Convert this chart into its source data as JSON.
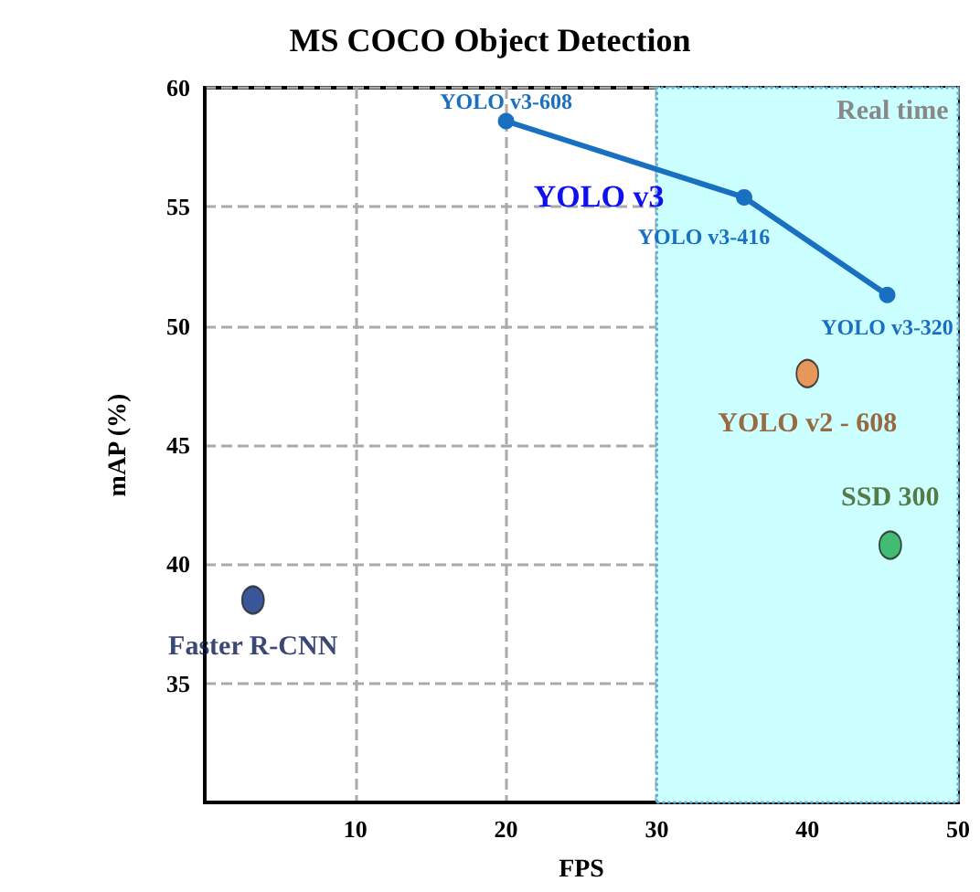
{
  "chart_data": {
    "type": "line",
    "title": "MS COCO Object Detection",
    "xlabel": "FPS",
    "ylabel": "mAP (%)",
    "xlim": [
      0,
      50
    ],
    "xticks": [
      10,
      20,
      30,
      40,
      50
    ],
    "ylim": [
      30,
      60
    ],
    "yticks": [
      35,
      40,
      45,
      50,
      55,
      60
    ],
    "grid": true,
    "legend": false,
    "marker": "circle",
    "line_style": "solid",
    "series": [
      {
        "name": "YOLO v3",
        "color": "#1a70c0",
        "x": [
          20,
          35.8,
          45.3
        ],
        "values": [
          58.6,
          55.4,
          51.3
        ],
        "value_labels": [
          "YOLO v3-608",
          "YOLO v3-416",
          "YOLO v3-320"
        ]
      },
      {
        "name": "YOLO v2 - 608",
        "type": "scatter",
        "color": "#ed7d31",
        "x": [
          40
        ],
        "values": [
          48.0
        ]
      },
      {
        "name": "SSD 300",
        "type": "scatter",
        "color": "#1faa50",
        "x": [
          45.5
        ],
        "values": [
          40.8
        ]
      },
      {
        "name": "Faster R-CNN",
        "type": "scatter",
        "color": "#0a2a80",
        "x": [
          3.2
        ],
        "values": [
          38.5
        ]
      }
    ],
    "bands": [
      {
        "axis": "x",
        "from": 30,
        "to": 50,
        "label": "Real time",
        "color": "#ccffff"
      }
    ]
  }
}
